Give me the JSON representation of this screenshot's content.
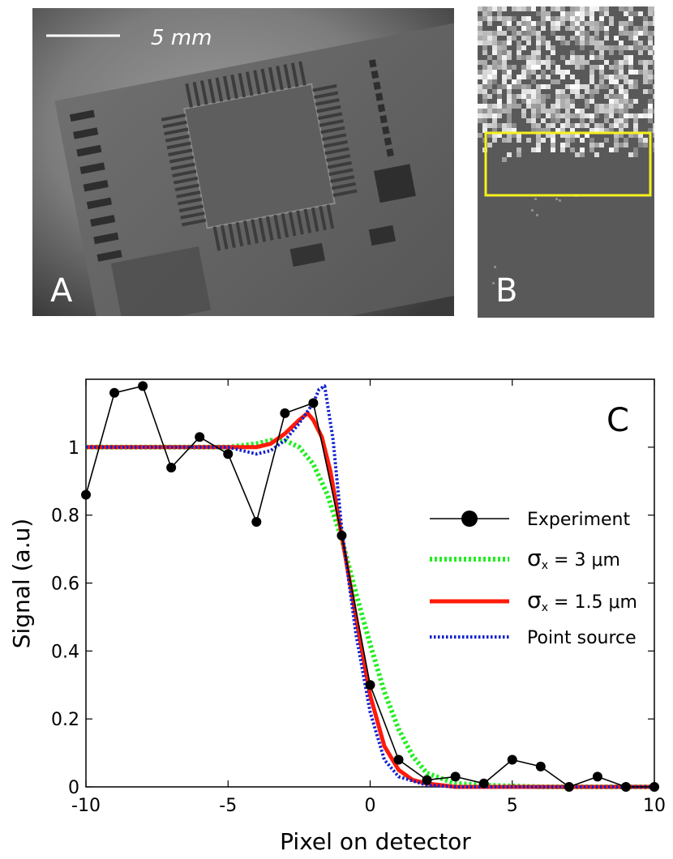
{
  "panel_a": {
    "label": "A",
    "scale_bar_text": "5 mm",
    "description_icon": "xray-pcb-chip-image"
  },
  "panel_b": {
    "label": "B",
    "description_icon": "xray-edge-image",
    "box_color": "#f5f01e"
  },
  "chart_data": {
    "type": "line",
    "panel_label": "C",
    "title": "",
    "xlabel": "Pixel on detector",
    "ylabel": "Signal (a.u)",
    "xlim": [
      -10,
      10
    ],
    "ylim": [
      0,
      1.2
    ],
    "xticks": [
      -10,
      -5,
      0,
      5,
      10
    ],
    "xtick_labels": [
      "-10",
      "-5",
      "0",
      "5",
      "10"
    ],
    "yticks": [
      0,
      0.2,
      0.4,
      0.6,
      0.8,
      1
    ],
    "ytick_labels": [
      "0",
      "0.2",
      "0.4",
      "0.6",
      "0.8",
      "1"
    ],
    "legend_position": "right",
    "series": [
      {
        "name": "Experiment",
        "legend_label": "Experiment",
        "style": "line-marker",
        "color": "#000000",
        "x": [
          -10,
          -9,
          -8,
          -7,
          -6,
          -5,
          -4,
          -3,
          -2,
          -1,
          0,
          1,
          2,
          3,
          4,
          5,
          6,
          7,
          8,
          9,
          10
        ],
        "y": [
          0.86,
          1.16,
          1.18,
          0.94,
          1.03,
          0.98,
          0.78,
          1.1,
          1.13,
          0.74,
          0.3,
          0.08,
          0.02,
          0.03,
          0.01,
          0.08,
          0.06,
          0.0,
          0.03,
          0.0,
          0.0
        ]
      },
      {
        "name": "sigma3",
        "legend_symbol": "σ",
        "legend_sub": "x",
        "legend_rest": " = 3 μm",
        "style": "dotted-thick",
        "color": "#22ee22",
        "x": [
          -10,
          -6,
          -5,
          -4,
          -3.5,
          -3,
          -2.5,
          -2,
          -1.5,
          -1,
          -0.5,
          0,
          0.5,
          1,
          1.5,
          2,
          3,
          4,
          6,
          10
        ],
        "y": [
          1.0,
          1.0,
          1.0,
          1.01,
          1.02,
          1.02,
          1.0,
          0.95,
          0.86,
          0.73,
          0.57,
          0.42,
          0.28,
          0.17,
          0.09,
          0.04,
          0.01,
          0.005,
          0.0,
          0.0
        ]
      },
      {
        "name": "sigma1_5",
        "legend_symbol": "σ",
        "legend_sub": "x",
        "legend_rest": " = 1.5 μm",
        "style": "solid-thick",
        "color": "#ff1a0a",
        "x": [
          -10,
          -6,
          -5,
          -4.5,
          -4,
          -3.5,
          -3,
          -2.5,
          -2.2,
          -2,
          -1.7,
          -1.4,
          -1,
          -0.5,
          0,
          0.5,
          1,
          1.5,
          2,
          3,
          4,
          6,
          10
        ],
        "y": [
          1.0,
          1.0,
          1.0,
          1.0,
          1.0,
          1.01,
          1.04,
          1.08,
          1.1,
          1.08,
          1.03,
          0.93,
          0.74,
          0.5,
          0.27,
          0.12,
          0.05,
          0.02,
          0.01,
          0.0,
          0.0,
          0.0,
          0.0
        ]
      },
      {
        "name": "point_source",
        "legend_label": "Point source",
        "style": "dotted-blue",
        "color": "#1020d0",
        "x": [
          -10,
          -6,
          -5,
          -4.5,
          -4,
          -3.5,
          -3,
          -2.5,
          -2,
          -1.8,
          -1.6,
          -1.3,
          -1,
          -0.5,
          0,
          0.5,
          1,
          2,
          3,
          4,
          6,
          10
        ],
        "y": [
          1.0,
          1.0,
          1.0,
          0.99,
          0.98,
          0.99,
          1.02,
          1.07,
          1.13,
          1.17,
          1.18,
          1.02,
          0.76,
          0.45,
          0.22,
          0.08,
          0.03,
          0.005,
          0.0,
          0.0,
          0.0,
          0.0
        ]
      }
    ]
  }
}
